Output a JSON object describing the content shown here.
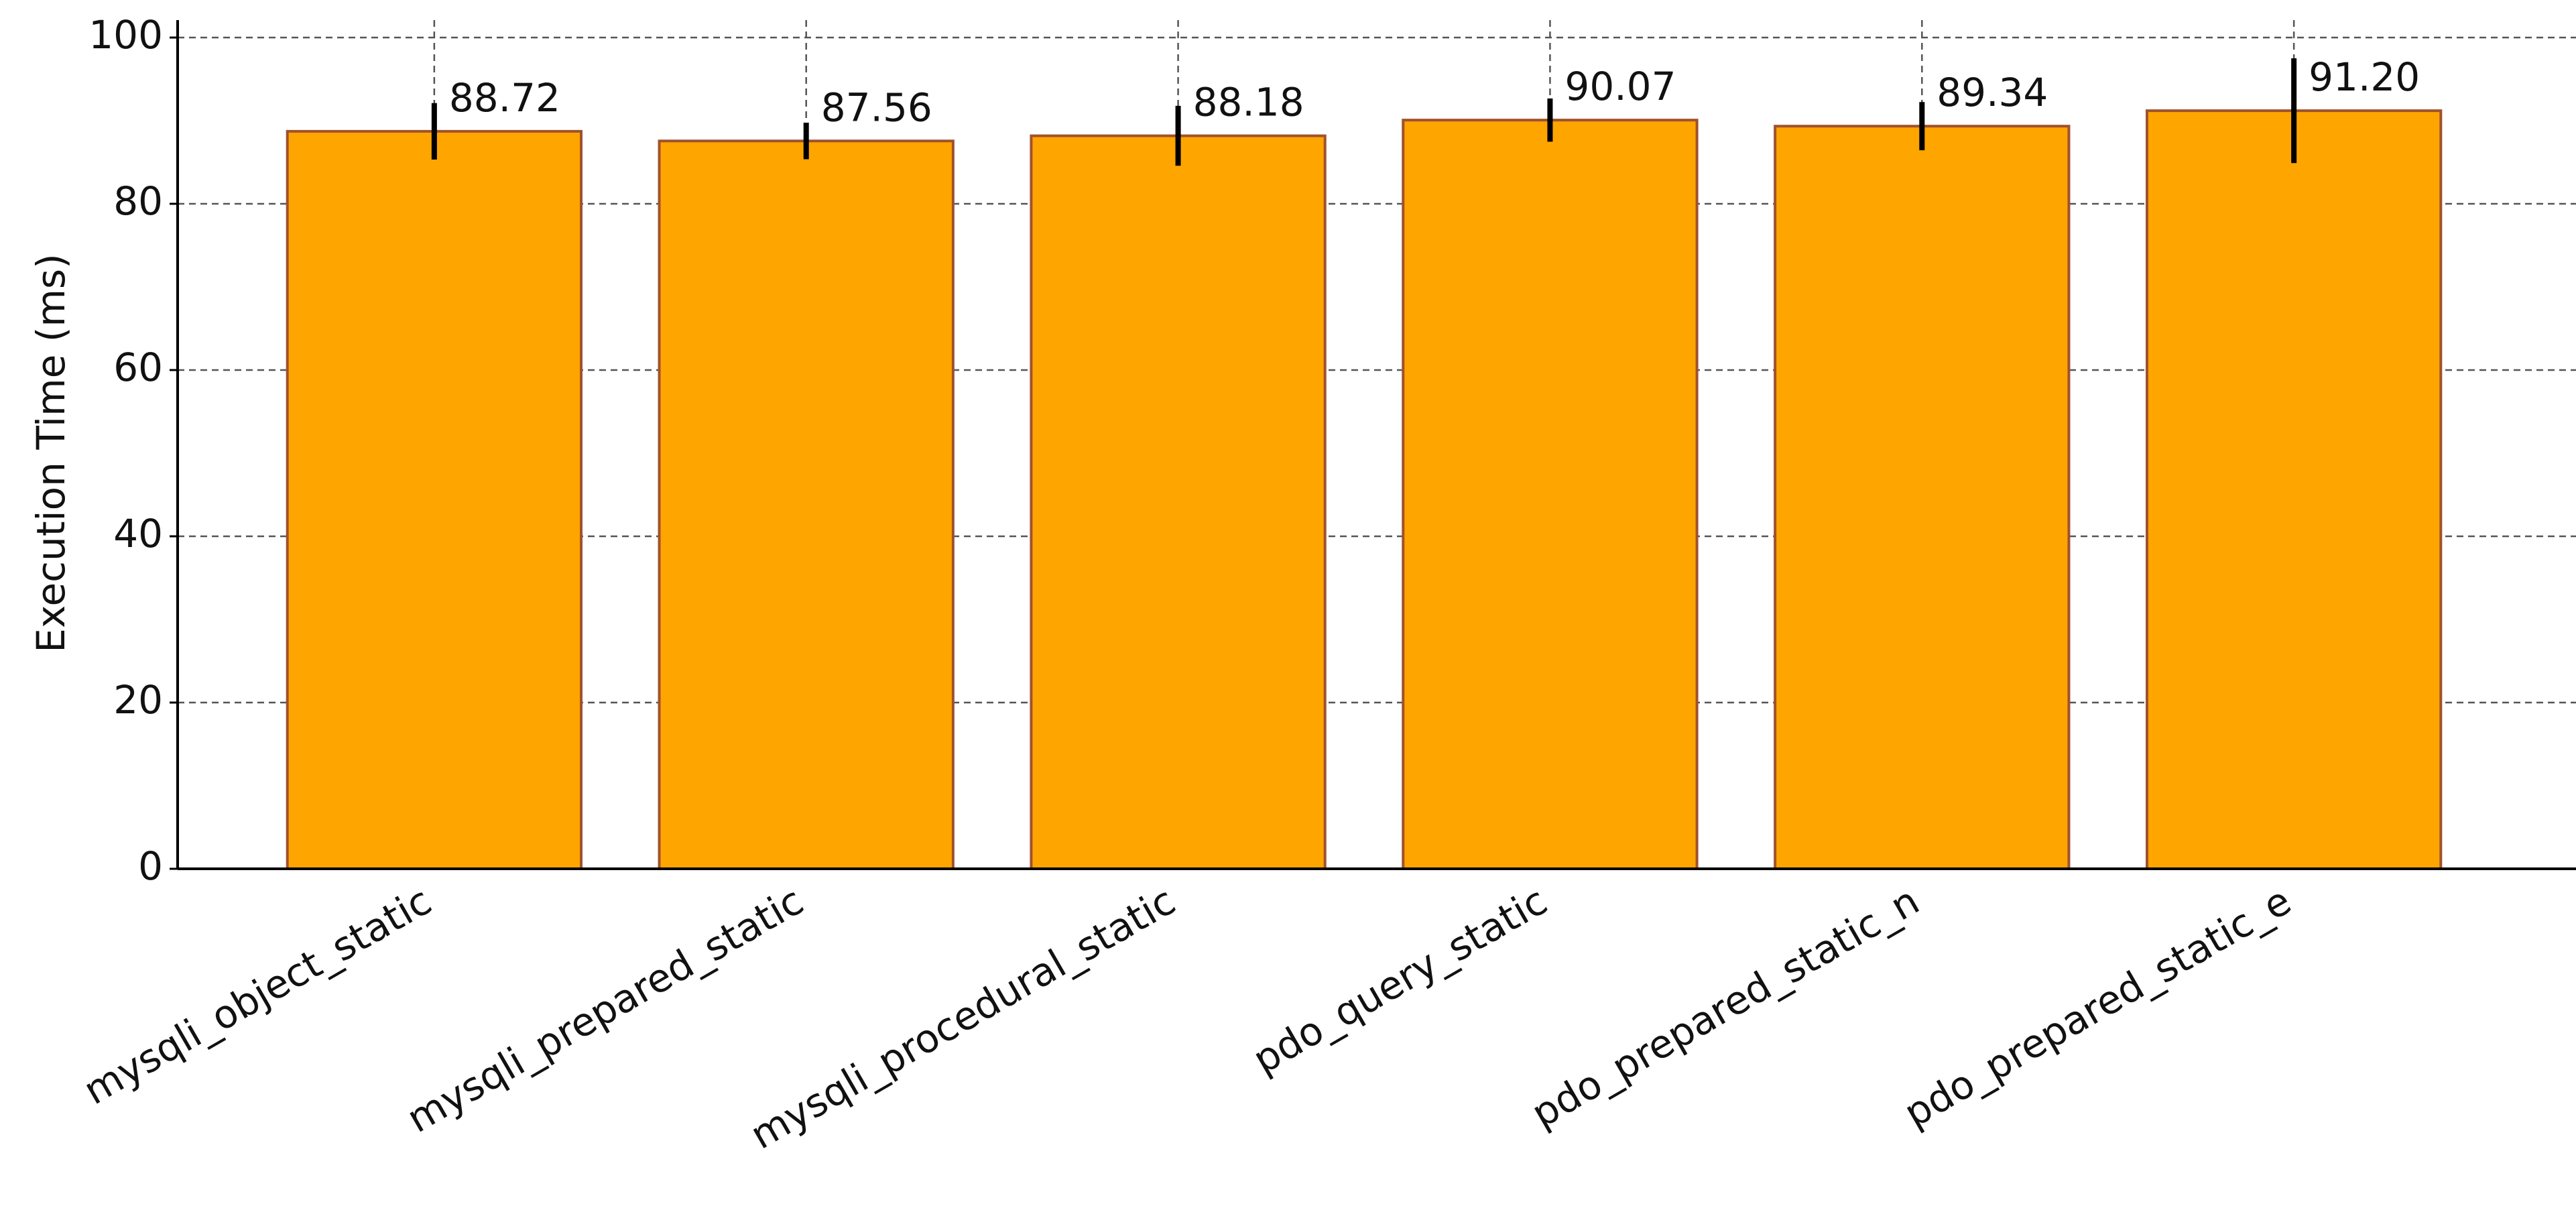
{
  "chart_data": {
    "type": "bar",
    "y_label": "Execution Time (ms)",
    "categories": [
      "mysqli_object_static",
      "mysqli_prepared_static",
      "mysqli_procedural_static",
      "pdo_query_static",
      "pdo_prepared_static_n",
      "pdo_prepared_static_e"
    ],
    "values": [
      88.72,
      87.56,
      88.18,
      90.07,
      89.34,
      91.2
    ],
    "value_labels": [
      "88.72",
      "87.56",
      "88.18",
      "90.07",
      "89.34",
      "91.20"
    ],
    "errors": [
      3.4,
      2.2,
      3.6,
      2.6,
      2.9,
      6.3
    ],
    "color": "#ffa500",
    "edge_color": "#a0522d",
    "error_color": "#000000",
    "ylim": [
      0,
      100
    ],
    "yticks": [
      0,
      20,
      40,
      60,
      80,
      100
    ],
    "grid": true
  }
}
